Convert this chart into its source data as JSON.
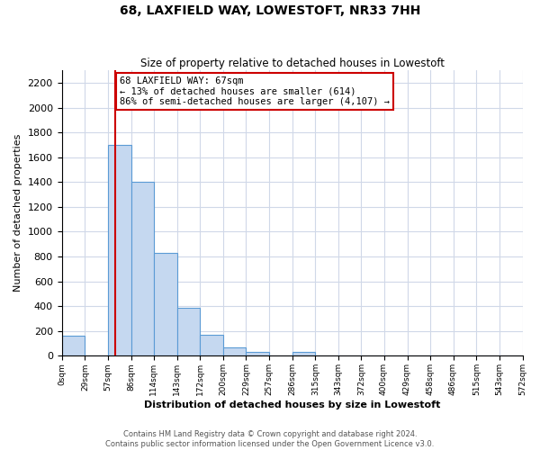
{
  "title": "68, LAXFIELD WAY, LOWESTOFT, NR33 7HH",
  "subtitle": "Size of property relative to detached houses in Lowestoft",
  "xlabel": "Distribution of detached houses by size in Lowestoft",
  "ylabel": "Number of detached properties",
  "bar_edges": [
    0,
    29,
    57,
    86,
    114,
    143,
    172,
    200,
    229,
    257,
    286,
    315,
    343,
    372,
    400,
    429,
    458,
    486,
    515,
    543,
    572
  ],
  "bar_heights": [
    160,
    0,
    1700,
    1400,
    830,
    390,
    170,
    65,
    30,
    0,
    30,
    0,
    0,
    0,
    0,
    0,
    0,
    0,
    0,
    0
  ],
  "bar_color": "#c5d8f0",
  "bar_edge_color": "#5b9bd5",
  "property_line_x": 67,
  "property_line_color": "#cc0000",
  "annotation_line1": "68 LAXFIELD WAY: 67sqm",
  "annotation_line2": "← 13% of detached houses are smaller (614)",
  "annotation_line3": "86% of semi-detached houses are larger (4,107) →",
  "annotation_box_color": "#ffffff",
  "annotation_box_edge": "#cc0000",
  "ylim": [
    0,
    2300
  ],
  "yticks": [
    0,
    200,
    400,
    600,
    800,
    1000,
    1200,
    1400,
    1600,
    1800,
    2000,
    2200
  ],
  "xtick_labels": [
    "0sqm",
    "29sqm",
    "57sqm",
    "86sqm",
    "114sqm",
    "143sqm",
    "172sqm",
    "200sqm",
    "229sqm",
    "257sqm",
    "286sqm",
    "315sqm",
    "343sqm",
    "372sqm",
    "400sqm",
    "429sqm",
    "458sqm",
    "486sqm",
    "515sqm",
    "543sqm",
    "572sqm"
  ],
  "footer_text": "Contains HM Land Registry data © Crown copyright and database right 2024.\nContains public sector information licensed under the Open Government Licence v3.0.",
  "grid_color": "#d0d8e8",
  "background_color": "#ffffff"
}
